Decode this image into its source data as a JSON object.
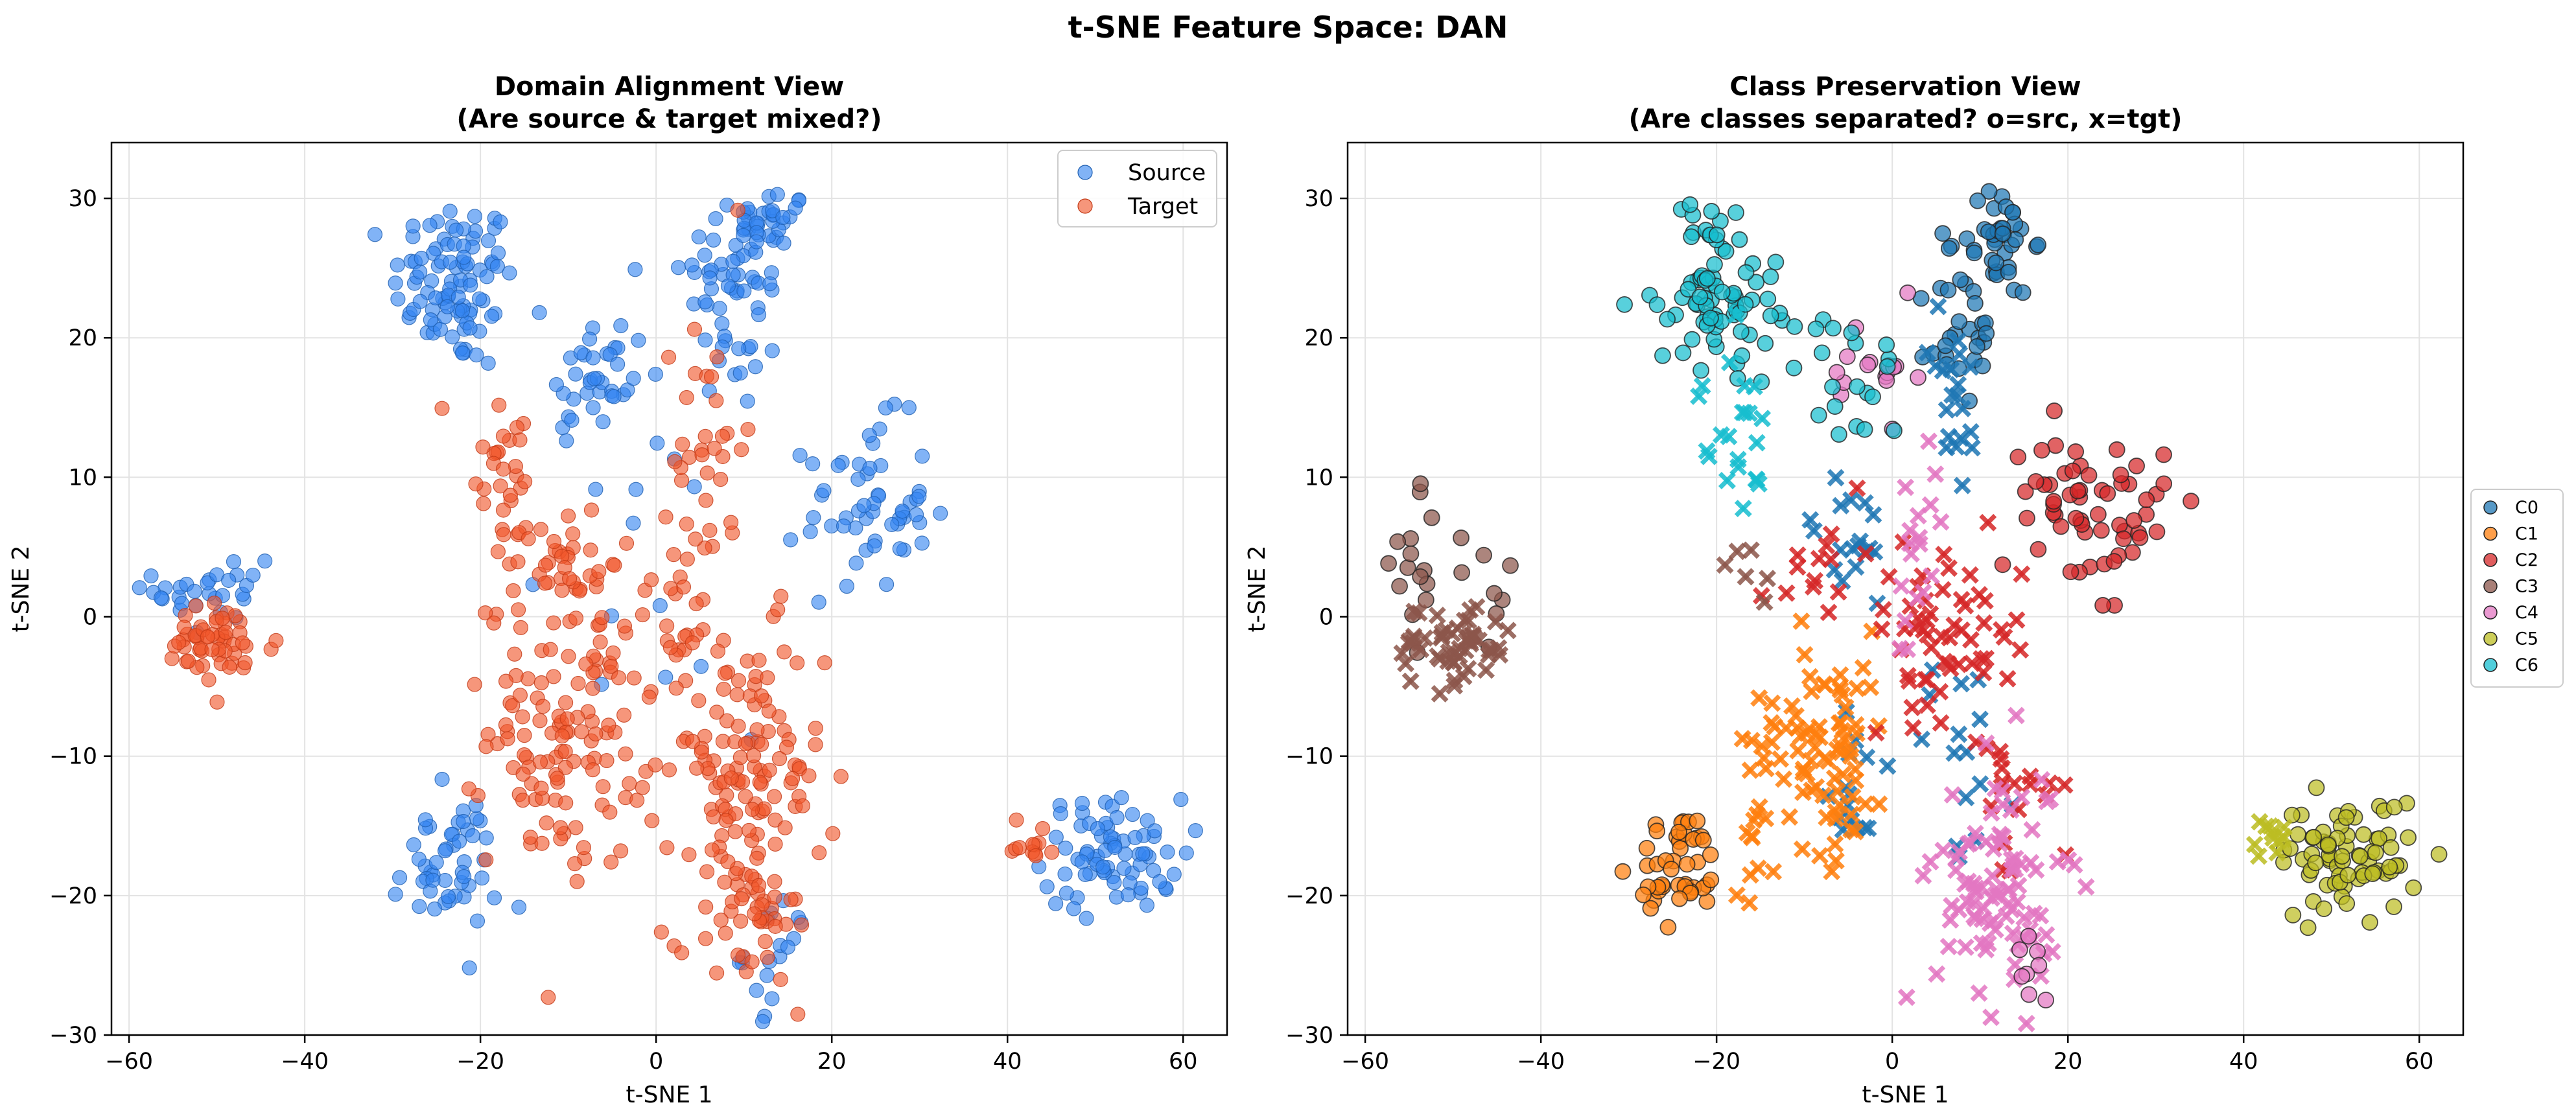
{
  "figure": {
    "suptitle": "t-SNE Feature Space: DAN"
  },
  "colors": {
    "source": "#3385f0",
    "target": "#f0562a",
    "C0": "#1f77b4",
    "C1": "#ff7f0e",
    "C2": "#d62728",
    "C3": "#8c564b",
    "C4": "#e377c2",
    "C5": "#bcbd22",
    "C6": "#17becf"
  },
  "chart_data": [
    {
      "type": "scatter",
      "title": "Domain Alignment View\n(Are source & target mixed?)",
      "title_lines": [
        "Domain Alignment View",
        "(Are source & target mixed?)"
      ],
      "xlabel": "t-SNE 1",
      "ylabel": "t-SNE 2",
      "xlim": [
        -62,
        65
      ],
      "ylim": [
        -30,
        34
      ],
      "xticks": [
        -60,
        -40,
        -20,
        0,
        20,
        40,
        60
      ],
      "yticks": [
        -30,
        -20,
        -10,
        0,
        10,
        20,
        30
      ],
      "grid": true,
      "legend_position": "top-right",
      "legend": [
        "Source",
        "Target"
      ],
      "series": [
        {
          "name": "Source",
          "color_key": "source",
          "marker": "circle",
          "clusters": [
            {
              "cx": -23,
              "cy": 24,
              "sx": 3.5,
              "sy": 3.0,
              "n": 95
            },
            {
              "cx": -7,
              "cy": 17,
              "sx": 3.0,
              "sy": 2.5,
              "n": 32
            },
            {
              "cx": 9,
              "cy": 24,
              "sx": 3.0,
              "sy": 3.5,
              "n": 55
            },
            {
              "cx": 13,
              "cy": 28,
              "sx": 2.0,
              "sy": 1.5,
              "n": 28
            },
            {
              "cx": 24,
              "cy": 8,
              "sx": 3.5,
              "sy": 3.0,
              "n": 55
            },
            {
              "cx": -50,
              "cy": 2,
              "sx": 3.5,
              "sy": 2.0,
              "n": 30
            },
            {
              "cx": 52,
              "cy": -17,
              "sx": 4.0,
              "sy": 2.0,
              "n": 75
            },
            {
              "cx": -24,
              "cy": -18,
              "sx": 3.0,
              "sy": 2.5,
              "n": 50
            },
            {
              "cx": 14,
              "cy": -24,
              "sx": 2.0,
              "sy": 2.0,
              "n": 18
            },
            {
              "cx": 0,
              "cy": 8,
              "sx": 6.0,
              "sy": 8.0,
              "n": 25
            }
          ]
        },
        {
          "name": "Target",
          "color_key": "target",
          "marker": "circle",
          "clusters": [
            {
              "cx": -50,
              "cy": -2,
              "sx": 3.5,
              "sy": 1.5,
              "n": 55
            },
            {
              "cx": 43,
              "cy": -16,
              "sx": 1.2,
              "sy": 0.8,
              "n": 12
            },
            {
              "cx": -10,
              "cy": -8,
              "sx": 4.5,
              "sy": 5.0,
              "n": 130
            },
            {
              "cx": 10,
              "cy": -12,
              "sx": 4.5,
              "sy": 5.5,
              "n": 130
            },
            {
              "cx": 11,
              "cy": -22,
              "sx": 2.5,
              "sy": 2.5,
              "n": 35
            },
            {
              "cx": -18,
              "cy": 11,
              "sx": 2.5,
              "sy": 4.0,
              "n": 30
            },
            {
              "cx": -10,
              "cy": 4,
              "sx": 3.0,
              "sy": 2.0,
              "n": 35
            },
            {
              "cx": 6,
              "cy": 12,
              "sx": 2.0,
              "sy": 5.0,
              "n": 35
            },
            {
              "cx": 2,
              "cy": 0,
              "sx": 2.0,
              "sy": 3.0,
              "n": 20
            }
          ]
        }
      ]
    },
    {
      "type": "scatter",
      "title": "Class Preservation View\n(Are classes separated? o=src, x=tgt)",
      "title_lines": [
        "Class Preservation View",
        "(Are classes separated? o=src, x=tgt)"
      ],
      "xlabel": "t-SNE 1",
      "ylabel": "t-SNE 2",
      "xlim": [
        -62,
        65
      ],
      "ylim": [
        -30,
        34
      ],
      "xticks": [
        -60,
        -40,
        -20,
        0,
        20,
        40,
        60
      ],
      "yticks": [
        -30,
        -20,
        -10,
        0,
        10,
        20,
        30
      ],
      "grid": true,
      "legend_position": "outside-right",
      "legend": [
        "C0",
        "C1",
        "C2",
        "C3",
        "C4",
        "C5",
        "C6"
      ],
      "series": [
        {
          "name": "C0",
          "color_key": "C0",
          "clusters": [
            {
              "marker": "o",
              "cx": 12,
              "cy": 27,
              "sx": 2.0,
              "sy": 2.0,
              "n": 40
            },
            {
              "marker": "o",
              "cx": 8,
              "cy": 20,
              "sx": 2.0,
              "sy": 2.5,
              "n": 25
            },
            {
              "marker": "x",
              "cx": 7,
              "cy": 15,
              "sx": 1.5,
              "sy": 3.5,
              "n": 20
            },
            {
              "marker": "x",
              "cx": -5,
              "cy": 5,
              "sx": 3.0,
              "sy": 2.5,
              "n": 18
            },
            {
              "marker": "x",
              "cx": -4,
              "cy": -12,
              "sx": 2.0,
              "sy": 2.5,
              "n": 14
            },
            {
              "marker": "x",
              "cx": 8,
              "cy": -10,
              "sx": 3.5,
              "sy": 4.0,
              "n": 16
            }
          ]
        },
        {
          "name": "C1",
          "color_key": "C1",
          "clusters": [
            {
              "marker": "o",
              "cx": -24,
              "cy": -18,
              "sx": 2.5,
              "sy": 2.0,
              "n": 45
            },
            {
              "marker": "x",
              "cx": -8,
              "cy": -9,
              "sx": 4.0,
              "sy": 4.0,
              "n": 85
            },
            {
              "marker": "x",
              "cx": -16,
              "cy": -16,
              "sx": 2.0,
              "sy": 2.0,
              "n": 10
            }
          ]
        },
        {
          "name": "C2",
          "color_key": "C2",
          "clusters": [
            {
              "marker": "o",
              "cx": 26,
              "cy": 7,
              "sx": 2.5,
              "sy": 3.0,
              "n": 35
            },
            {
              "marker": "o",
              "cx": 19,
              "cy": 9,
              "sx": 2.0,
              "sy": 2.5,
              "n": 25
            },
            {
              "marker": "x",
              "cx": 6,
              "cy": -1,
              "sx": 4.5,
              "sy": 3.0,
              "n": 55
            },
            {
              "marker": "x",
              "cx": 14,
              "cy": -12,
              "sx": 2.5,
              "sy": 4.0,
              "n": 20
            },
            {
              "marker": "x",
              "cx": -9,
              "cy": 5,
              "sx": 3.0,
              "sy": 3.0,
              "n": 14
            }
          ]
        },
        {
          "name": "C3",
          "color_key": "C3",
          "clusters": [
            {
              "marker": "o",
              "cx": -54,
              "cy": 2,
              "sx": 1.5,
              "sy": 3.0,
              "n": 15
            },
            {
              "marker": "o",
              "cx": -46,
              "cy": 2,
              "sx": 2.5,
              "sy": 2.0,
              "n": 8
            },
            {
              "marker": "x",
              "cx": -50,
              "cy": -2,
              "sx": 3.5,
              "sy": 1.5,
              "n": 55
            },
            {
              "marker": "x",
              "cx": -15,
              "cy": 4,
              "sx": 2.0,
              "sy": 2.0,
              "n": 6
            }
          ]
        },
        {
          "name": "C4",
          "color_key": "C4",
          "clusters": [
            {
              "marker": "x",
              "cx": 12,
              "cy": -19,
              "sx": 3.5,
              "sy": 4.5,
              "n": 95
            },
            {
              "marker": "x",
              "cx": 3,
              "cy": 3,
              "sx": 2.0,
              "sy": 4.0,
              "n": 18
            },
            {
              "marker": "o",
              "cx": -2,
              "cy": 17,
              "sx": 2.5,
              "sy": 2.5,
              "n": 16
            },
            {
              "marker": "o",
              "cx": 16,
              "cy": -25,
              "sx": 1.0,
              "sy": 1.5,
              "n": 8
            }
          ]
        },
        {
          "name": "C5",
          "color_key": "C5",
          "clusters": [
            {
              "marker": "o",
              "cx": 52,
              "cy": -17,
              "sx": 4.0,
              "sy": 2.0,
              "n": 75
            },
            {
              "marker": "x",
              "cx": 43,
              "cy": -16,
              "sx": 1.2,
              "sy": 0.8,
              "n": 12
            }
          ]
        },
        {
          "name": "C6",
          "color_key": "C6",
          "clusters": [
            {
              "marker": "o",
              "cx": -20,
              "cy": 23,
              "sx": 3.5,
              "sy": 2.5,
              "n": 70
            },
            {
              "marker": "o",
              "cx": -20,
              "cy": 28,
              "sx": 2.0,
              "sy": 1.0,
              "n": 10
            },
            {
              "marker": "o",
              "cx": -5,
              "cy": 17,
              "sx": 3.0,
              "sy": 2.5,
              "n": 20
            },
            {
              "marker": "x",
              "cx": -18,
              "cy": 13,
              "sx": 2.0,
              "sy": 3.0,
              "n": 22
            }
          ]
        }
      ]
    }
  ]
}
